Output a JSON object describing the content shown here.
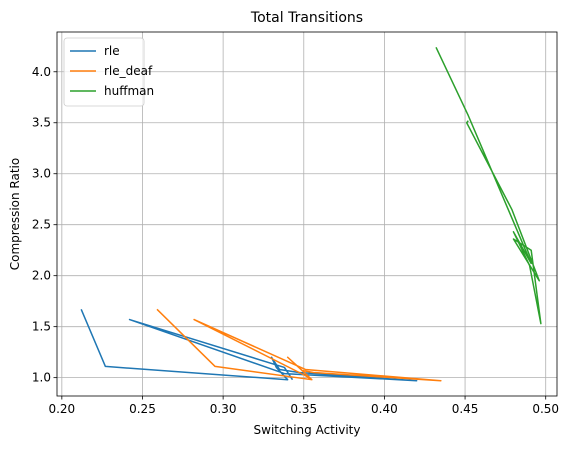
{
  "chart_data": {
    "type": "line",
    "title": "Total Transitions",
    "xlabel": "Switching Activity",
    "ylabel": "Compression Ratio",
    "xlim": [
      0.197,
      0.507
    ],
    "ylim": [
      0.82,
      4.39
    ],
    "xticks": [
      0.2,
      0.25,
      0.3,
      0.35,
      0.4,
      0.45,
      0.5
    ],
    "xtick_labels": [
      "0.20",
      "0.25",
      "0.30",
      "0.35",
      "0.40",
      "0.45",
      "0.50"
    ],
    "yticks": [
      1.0,
      1.5,
      2.0,
      2.5,
      3.0,
      3.5,
      4.0
    ],
    "ytick_labels": [
      "1.0",
      "1.5",
      "2.0",
      "2.5",
      "3.0",
      "3.5",
      "4.0"
    ],
    "grid": true,
    "legend_position": "top-left",
    "series": [
      {
        "name": "rle",
        "color": "#1f77b4",
        "points": [
          [
            0.212,
            1.67
          ],
          [
            0.227,
            1.11
          ],
          [
            0.34,
            0.98
          ],
          [
            0.333,
            1.1
          ],
          [
            0.33,
            1.2
          ],
          [
            0.335,
            1.08
          ],
          [
            0.347,
            1.05
          ],
          [
            0.42,
            0.97
          ],
          [
            0.338,
            1.04
          ],
          [
            0.242,
            1.57
          ],
          [
            0.338,
            1.1
          ],
          [
            0.343,
            0.98
          ]
        ]
      },
      {
        "name": "rle_deaf",
        "color": "#ff7f0e",
        "points": [
          [
            0.259,
            1.67
          ],
          [
            0.295,
            1.11
          ],
          [
            0.355,
            0.98
          ],
          [
            0.347,
            1.1
          ],
          [
            0.34,
            1.2
          ],
          [
            0.349,
            1.07
          ],
          [
            0.356,
            1.05
          ],
          [
            0.435,
            0.97
          ],
          [
            0.351,
            1.08
          ],
          [
            0.282,
            1.57
          ],
          [
            0.351,
            1.02
          ],
          [
            0.355,
            0.98
          ]
        ]
      },
      {
        "name": "huffman",
        "color": "#2ca02c",
        "points": [
          [
            0.432,
            4.24
          ],
          [
            0.452,
            3.57
          ],
          [
            0.491,
            2.12
          ],
          [
            0.48,
            2.43
          ],
          [
            0.49,
            2.1
          ],
          [
            0.497,
            1.53
          ],
          [
            0.491,
            2.25
          ],
          [
            0.48,
            2.36
          ],
          [
            0.496,
            1.95
          ],
          [
            0.479,
            2.65
          ],
          [
            0.451,
            3.5
          ],
          [
            0.452,
            3.52
          ]
        ]
      }
    ]
  }
}
